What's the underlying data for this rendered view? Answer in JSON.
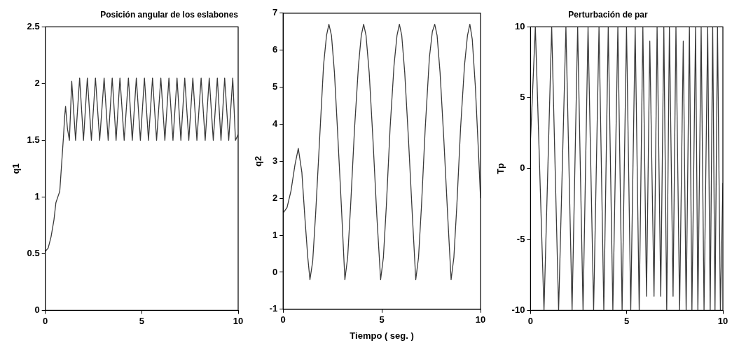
{
  "chart_data": [
    {
      "type": "line",
      "title": "Posición angular de los eslabones",
      "ylabel": "q1",
      "xlim": [
        0,
        10
      ],
      "xticks": [
        0,
        5,
        10
      ],
      "ylim": [
        0,
        2.5
      ],
      "yticks": [
        0,
        0.5,
        1,
        1.5,
        2,
        2.5
      ],
      "grid": false,
      "legend": false,
      "marker": "none",
      "line_style": "solid",
      "series": [
        {
          "color": "#3a3a3a",
          "x": [
            0,
            0.15,
            0.3,
            0.45,
            0.55,
            0.65,
            0.75,
            0.85,
            0.95,
            1.0,
            1.05,
            1.15,
            1.25,
            1.37,
            1.57,
            1.78,
            1.98,
            2.18,
            2.39,
            2.6,
            2.82,
            3.05,
            3.26,
            3.47,
            3.67,
            3.87,
            4.09,
            4.31,
            4.51,
            4.72,
            4.93,
            5.14,
            5.35,
            5.56,
            5.77,
            5.99,
            6.2,
            6.41,
            6.62,
            6.83,
            7.03,
            7.23,
            7.44,
            7.65,
            7.86,
            8.08,
            8.29,
            8.5,
            8.71,
            8.92,
            9.11,
            9.3,
            9.51,
            9.72,
            9.86,
            10
          ],
          "values": [
            0.52,
            0.55,
            0.65,
            0.8,
            0.95,
            1.0,
            1.05,
            1.3,
            1.55,
            1.7,
            1.8,
            1.6,
            1.5,
            2.02,
            1.5,
            2.05,
            1.5,
            2.05,
            1.5,
            2.05,
            1.5,
            2.05,
            1.5,
            2.05,
            1.5,
            2.05,
            1.5,
            2.05,
            1.5,
            2.05,
            1.5,
            2.05,
            1.5,
            2.05,
            1.5,
            2.05,
            1.5,
            2.05,
            1.5,
            2.05,
            1.5,
            2.05,
            1.5,
            2.05,
            1.5,
            2.05,
            1.5,
            2.05,
            1.5,
            2.05,
            1.5,
            2.05,
            1.5,
            2.05,
            1.5,
            1.55
          ]
        }
      ]
    },
    {
      "type": "line",
      "xlabel": "Tiempo ( seg. )",
      "ylabel": "q2",
      "xlim": [
        0,
        10
      ],
      "xticks": [
        0,
        5,
        10
      ],
      "ylim": [
        -1,
        7
      ],
      "yticks": [
        -1,
        0,
        1,
        2,
        3,
        4,
        5,
        6,
        7
      ],
      "grid": false,
      "legend": false,
      "marker": "none",
      "line_style": "solid",
      "series": [
        {
          "color": "#3a3a3a",
          "x": [
            0,
            0.2,
            0.4,
            0.6,
            0.77,
            0.95,
            1.1,
            1.25,
            1.36,
            1.5,
            1.65,
            1.85,
            2.05,
            2.2,
            2.32,
            2.45,
            2.6,
            2.75,
            2.95,
            3.13,
            3.27,
            3.42,
            3.62,
            3.82,
            3.96,
            4.08,
            4.2,
            4.36,
            4.55,
            4.75,
            4.94,
            5.08,
            5.23,
            5.42,
            5.62,
            5.77,
            5.89,
            6.01,
            6.16,
            6.35,
            6.55,
            6.72,
            6.86,
            7.01,
            7.2,
            7.41,
            7.56,
            7.68,
            7.8,
            7.95,
            8.14,
            8.34,
            8.51,
            8.65,
            8.8,
            8.99,
            9.19,
            9.34,
            9.46,
            9.58,
            9.74,
            9.9,
            10
          ],
          "values": [
            1.6,
            1.75,
            2.2,
            2.9,
            3.35,
            2.7,
            1.5,
            0.4,
            -0.2,
            0.3,
            1.6,
            3.6,
            5.6,
            6.4,
            6.7,
            6.4,
            5.4,
            3.9,
            1.8,
            -0.2,
            0.4,
            1.8,
            3.9,
            5.6,
            6.4,
            6.7,
            6.4,
            5.4,
            3.6,
            1.5,
            -0.2,
            0.4,
            1.8,
            3.9,
            5.6,
            6.4,
            6.7,
            6.4,
            5.4,
            3.6,
            1.5,
            -0.2,
            0.4,
            1.8,
            3.9,
            5.8,
            6.5,
            6.7,
            6.4,
            5.4,
            3.6,
            1.5,
            -0.2,
            0.4,
            1.8,
            3.9,
            5.6,
            6.4,
            6.7,
            6.3,
            5.0,
            3.2,
            2.0
          ]
        }
      ]
    },
    {
      "type": "line",
      "title": "Perturbación de par",
      "ylabel": "Tp",
      "xlim": [
        0,
        10
      ],
      "xticks": [
        0,
        5,
        10
      ],
      "ylim": [
        -10,
        10
      ],
      "yticks": [
        -10,
        -5,
        0,
        5,
        10
      ],
      "grid": false,
      "legend": false,
      "marker": "none",
      "line_style": "solid",
      "series": [
        {
          "color": "#3a3a3a",
          "x": [
            0,
            0.25,
            0.7,
            1.1,
            1.46,
            1.84,
            2.16,
            2.45,
            2.73,
            2.99,
            3.28,
            3.56,
            3.81,
            4.04,
            4.28,
            4.54,
            4.76,
            4.99,
            5.21,
            5.44,
            5.65,
            5.84,
            6.03,
            6.2,
            6.42,
            6.58,
            6.77,
            6.93,
            7.08,
            7.22,
            7.41,
            7.56,
            7.75,
            7.94,
            8.09,
            8.26,
            8.39,
            8.58,
            8.7,
            8.87,
            9.02,
            9.21,
            9.34,
            9.47,
            9.59,
            9.72,
            9.87,
            10
          ],
          "values": [
            2,
            10,
            -10,
            10,
            -10,
            10,
            -10,
            10,
            -10,
            10,
            -10,
            10,
            -10,
            10,
            -10,
            10,
            -10,
            10,
            -10,
            10,
            -10,
            10,
            -9,
            9,
            -9,
            10,
            -9,
            10,
            -10,
            10,
            -9,
            10,
            -10,
            9,
            -10,
            10,
            -10,
            10,
            -10,
            10,
            -10,
            10,
            -10,
            10,
            -10,
            10,
            -10,
            -1
          ]
        }
      ]
    }
  ]
}
